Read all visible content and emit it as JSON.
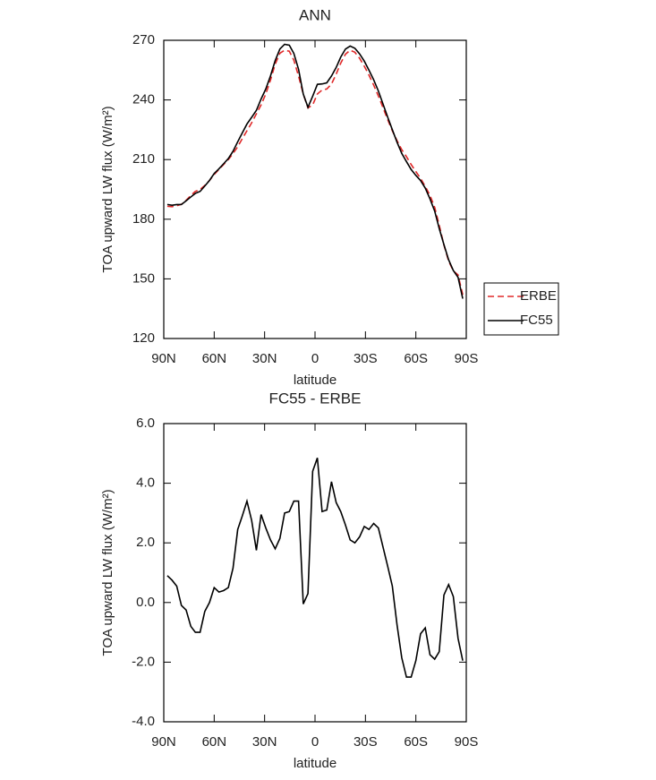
{
  "chart_data": [
    {
      "type": "line",
      "title": "ANN",
      "xlabel": "latitude",
      "ylabel": "TOA upward LW flux (W/m²)",
      "x": [
        87.9,
        85.1,
        82.3,
        79.5,
        76.7,
        73.9,
        71.2,
        68.4,
        65.6,
        62.8,
        60.0,
        57.2,
        54.4,
        51.6,
        48.8,
        46.0,
        43.3,
        40.5,
        37.7,
        34.9,
        32.1,
        29.3,
        26.5,
        23.7,
        20.9,
        18.1,
        15.3,
        12.6,
        9.8,
        7.0,
        4.2,
        1.4,
        -1.4,
        -4.2,
        -7.0,
        -9.8,
        -12.6,
        -15.3,
        -18.1,
        -20.9,
        -23.7,
        -26.5,
        -29.3,
        -32.1,
        -34.9,
        -37.7,
        -40.5,
        -43.3,
        -46.0,
        -48.8,
        -51.6,
        -54.4,
        -57.2,
        -60.0,
        -62.8,
        -65.6,
        -68.4,
        -71.2,
        -73.9,
        -76.7,
        -79.5,
        -82.3,
        -85.1,
        -87.9
      ],
      "series": [
        {
          "name": "ERBE",
          "color": "#e02828",
          "line_style": "dashed",
          "values": [
            186.5,
            186.3,
            186.8,
            187.5,
            189.5,
            192,
            194,
            195,
            197,
            199.5,
            202.5,
            205,
            207.5,
            210,
            213,
            216.5,
            220.5,
            224.5,
            228.5,
            233,
            237.5,
            243,
            250,
            258,
            263.5,
            265,
            264.5,
            260,
            252,
            243,
            236,
            237.5,
            243,
            245,
            245.5,
            248,
            253,
            258.5,
            263,
            265,
            264,
            261,
            257,
            252.5,
            247.5,
            242,
            236,
            230,
            224.5,
            219.5,
            215,
            211.5,
            207.5,
            204,
            200.5,
            196.5,
            192,
            186,
            177,
            167,
            159,
            154,
            152,
            142
          ]
        },
        {
          "name": "FC55",
          "color": "#000000",
          "line_style": "solid",
          "values": [
            187.4,
            187.05,
            187.35,
            187.4,
            189.25,
            191.2,
            193,
            194,
            196.7,
            199.5,
            203,
            205.35,
            207.9,
            210.5,
            214.15,
            218.95,
            223.4,
            227.9,
            231.25,
            234.75,
            240.45,
            245.5,
            252.1,
            259.8,
            265.65,
            268,
            267.55,
            263.4,
            255.4,
            242.95,
            236.3,
            241.9,
            247.85,
            248.05,
            248.6,
            252.05,
            256.35,
            261.55,
            265.6,
            267.1,
            266,
            263.2,
            259.55,
            254.95,
            250.15,
            244.5,
            237.85,
            231.2,
            225.05,
            218.75,
            213.15,
            209,
            205,
            202.05,
            199.45,
            195.65,
            190.25,
            184.1,
            175.35,
            167.25,
            159.6,
            154.2,
            150.8,
            140.05
          ]
        }
      ],
      "xlim": [
        90,
        -90
      ],
      "xticks": [
        {
          "value": 90,
          "label": "90N"
        },
        {
          "value": 60,
          "label": "60N"
        },
        {
          "value": 30,
          "label": "30N"
        },
        0,
        {
          "value": -30,
          "label": "30S"
        },
        {
          "value": -60,
          "label": "60S"
        },
        {
          "value": -90,
          "label": "90S"
        }
      ],
      "ylim": [
        120,
        270
      ],
      "yticks": [
        120,
        150,
        180,
        210,
        240,
        270
      ],
      "legend": "right"
    },
    {
      "type": "line",
      "title": "FC55 - ERBE",
      "xlabel": "latitude",
      "ylabel": "TOA upward LW flux (W/m²)",
      "x": [
        87.9,
        85.1,
        82.3,
        79.5,
        76.7,
        73.9,
        71.2,
        68.4,
        65.6,
        62.8,
        60.0,
        57.2,
        54.4,
        51.6,
        48.8,
        46.0,
        43.3,
        40.5,
        37.7,
        34.9,
        32.1,
        29.3,
        26.5,
        23.7,
        20.9,
        18.1,
        15.3,
        12.6,
        9.8,
        7.0,
        4.2,
        1.4,
        -1.4,
        -4.2,
        -7.0,
        -9.8,
        -12.6,
        -15.3,
        -18.1,
        -20.9,
        -23.7,
        -26.5,
        -29.3,
        -32.1,
        -34.9,
        -37.7,
        -40.5,
        -43.3,
        -46.0,
        -48.8,
        -51.6,
        -54.4,
        -57.2,
        -60.0,
        -62.8,
        -65.6,
        -68.4,
        -71.2,
        -73.9,
        -76.7,
        -79.5,
        -82.3,
        -85.1,
        -87.9
      ],
      "values": [
        0.9,
        0.75,
        0.55,
        -0.1,
        -0.25,
        -0.8,
        -1.0,
        -1.0,
        -0.3,
        0.0,
        0.5,
        0.35,
        0.4,
        0.5,
        1.15,
        2.45,
        2.9,
        3.4,
        2.75,
        1.75,
        2.95,
        2.5,
        2.1,
        1.8,
        2.15,
        3.0,
        3.05,
        3.4,
        3.4,
        -0.05,
        0.3,
        4.4,
        4.85,
        3.05,
        3.1,
        4.05,
        3.35,
        3.05,
        2.6,
        2.1,
        2.0,
        2.2,
        2.55,
        2.45,
        2.65,
        2.5,
        1.85,
        1.2,
        0.55,
        -0.75,
        -1.85,
        -2.5,
        -2.5,
        -1.95,
        -1.05,
        -0.85,
        -1.75,
        -1.9,
        -1.65,
        0.25,
        0.6,
        0.2,
        -1.2,
        -1.95
      ],
      "color": "#000000",
      "xlim": [
        90,
        -90
      ],
      "xticks": [
        {
          "value": 90,
          "label": "90N"
        },
        {
          "value": 60,
          "label": "60N"
        },
        {
          "value": 30,
          "label": "30N"
        },
        0,
        {
          "value": -30,
          "label": "30S"
        },
        {
          "value": -60,
          "label": "60S"
        },
        {
          "value": -90,
          "label": "90S"
        }
      ],
      "ylim": [
        -4,
        6
      ],
      "yticks": [
        {
          "value": -4,
          "label": "-4.0"
        },
        {
          "value": -2,
          "label": "-2.0"
        },
        {
          "value": 0,
          "label": "0.0"
        },
        {
          "value": 2,
          "label": "2.0"
        },
        {
          "value": 4,
          "label": "4.0"
        },
        {
          "value": 6,
          "label": "6.0"
        }
      ]
    }
  ]
}
